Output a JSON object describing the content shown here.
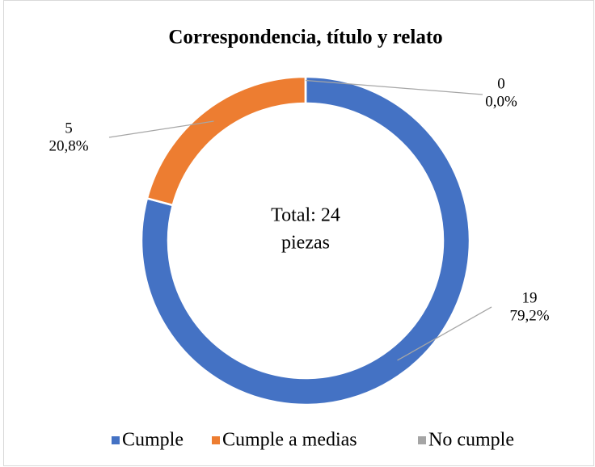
{
  "chart_data": {
    "type": "donut",
    "title": "Correspondencia,  título y relato",
    "center_text": [
      "Total: 24",
      "piezas"
    ],
    "categories": [
      "Cumple",
      "Cumple a medias",
      "No cumple"
    ],
    "values": [
      19,
      5,
      0
    ],
    "percentages": [
      79.2,
      20.8,
      0.0
    ],
    "percentage_labels": [
      "79,2%",
      "20,8%",
      "0,0%"
    ],
    "colors": [
      "#4472c4",
      "#ed7d31",
      "#a5a5a5"
    ],
    "legend": "bottom"
  }
}
